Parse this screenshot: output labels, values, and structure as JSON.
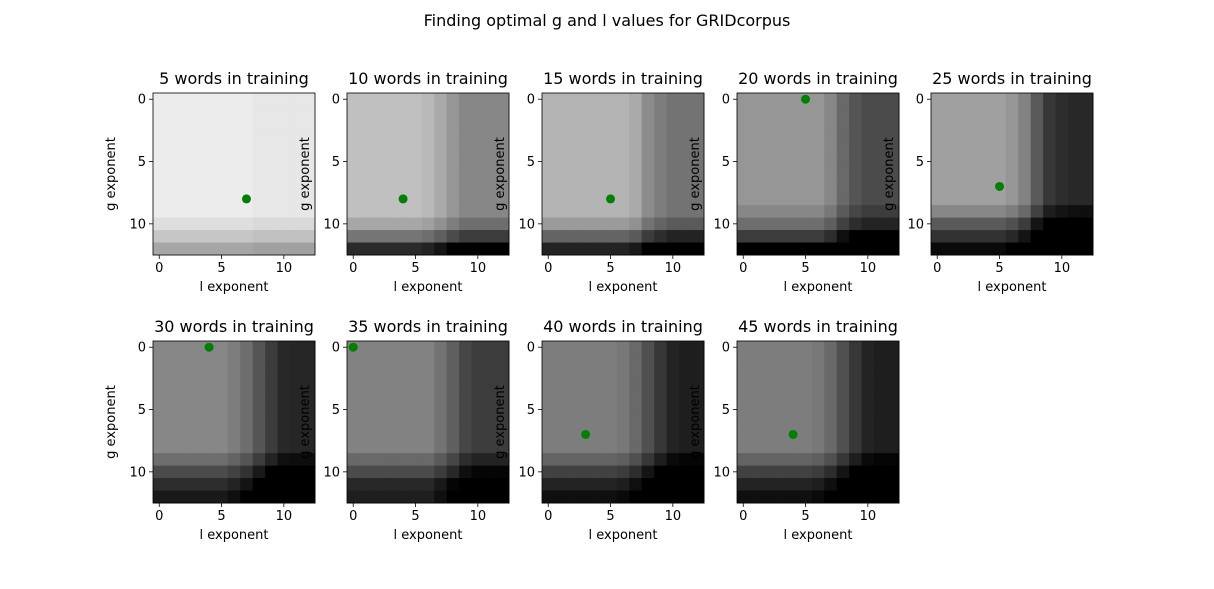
{
  "chart_data": {
    "type": "heatmap",
    "title": "Finding optimal g and l values for GRIDcorpus",
    "xlabel": "l exponent",
    "ylabel": "g exponent",
    "xticks": [
      0,
      5,
      10
    ],
    "yticks": [
      0,
      5,
      10
    ],
    "xlim": [
      -0.5,
      12.5
    ],
    "ylim": [
      12.5,
      -0.5
    ],
    "grid_size": [
      13,
      13
    ],
    "colormap": "gray",
    "marker_color": "#008000",
    "panels": [
      {
        "title": "5 words in training",
        "base": 236,
        "col_drops": [
          236,
          236,
          236,
          236,
          236,
          236,
          236,
          240,
          231,
          231,
          231,
          231,
          231
        ],
        "row_drops": [
          0,
          0,
          0,
          0,
          0,
          0,
          0,
          0,
          0,
          0,
          14,
          38,
          70
        ],
        "optimum": {
          "l": 7,
          "g": 8
        }
      },
      {
        "title": "10 words in training",
        "base": 192,
        "col_drops": [
          192,
          192,
          192,
          192,
          192,
          192,
          185,
          170,
          150,
          135,
          135,
          135,
          135
        ],
        "row_drops": [
          0,
          0,
          0,
          0,
          0,
          0,
          0,
          0,
          0,
          0,
          25,
          75,
          150
        ],
        "optimum": {
          "l": 4,
          "g": 8
        }
      },
      {
        "title": "15 words in training",
        "base": 180,
        "col_drops": [
          180,
          180,
          180,
          180,
          180,
          180,
          180,
          170,
          140,
          125,
          115,
          115,
          115
        ],
        "row_drops": [
          0,
          0,
          0,
          0,
          0,
          0,
          0,
          0,
          0,
          0,
          25,
          80,
          145
        ],
        "optimum": {
          "l": 5,
          "g": 8
        }
      },
      {
        "title": "20 words in training",
        "base": 150,
        "col_drops": [
          150,
          150,
          150,
          150,
          150,
          150,
          150,
          135,
          105,
          85,
          75,
          75,
          75
        ],
        "row_drops": [
          0,
          0,
          0,
          0,
          0,
          0,
          0,
          0,
          0,
          15,
          40,
          90,
          150
        ],
        "optimum": {
          "l": 5,
          "g": 0
        }
      },
      {
        "title": "25 words in training",
        "base": 160,
        "col_drops": [
          160,
          160,
          160,
          160,
          160,
          160,
          150,
          130,
          90,
          55,
          45,
          40,
          40
        ],
        "row_drops": [
          0,
          0,
          0,
          0,
          0,
          0,
          0,
          0,
          0,
          25,
          70,
          110,
          150
        ],
        "optimum": {
          "l": 5,
          "g": 7
        }
      },
      {
        "title": "30 words in training",
        "base": 135,
        "col_drops": [
          135,
          135,
          135,
          135,
          135,
          135,
          125,
          110,
          85,
          60,
          40,
          38,
          38
        ],
        "row_drops": [
          0,
          0,
          0,
          0,
          0,
          0,
          0,
          0,
          0,
          25,
          60,
          90,
          110
        ],
        "optimum": {
          "l": 4,
          "g": 0
        }
      },
      {
        "title": "35 words in training",
        "base": 130,
        "col_drops": [
          130,
          130,
          130,
          130,
          130,
          130,
          130,
          115,
          95,
          70,
          60,
          60,
          60
        ],
        "row_drops": [
          0,
          0,
          0,
          0,
          0,
          0,
          0,
          0,
          0,
          25,
          55,
          90,
          100
        ],
        "optimum": {
          "l": 0,
          "g": 0
        }
      },
      {
        "title": "40 words in training",
        "base": 125,
        "col_drops": [
          125,
          125,
          125,
          125,
          125,
          125,
          120,
          105,
          80,
          55,
          35,
          30,
          30
        ],
        "row_drops": [
          0,
          0,
          0,
          0,
          0,
          0,
          0,
          0,
          0,
          25,
          60,
          90,
          110
        ],
        "optimum": {
          "l": 3,
          "g": 7
        }
      },
      {
        "title": "45 words in training",
        "base": 125,
        "col_drops": [
          125,
          125,
          125,
          125,
          125,
          125,
          120,
          105,
          80,
          55,
          35,
          30,
          30
        ],
        "row_drops": [
          0,
          0,
          0,
          0,
          0,
          0,
          0,
          0,
          0,
          25,
          60,
          90,
          110
        ],
        "optimum": {
          "l": 4,
          "g": 7
        }
      }
    ]
  }
}
